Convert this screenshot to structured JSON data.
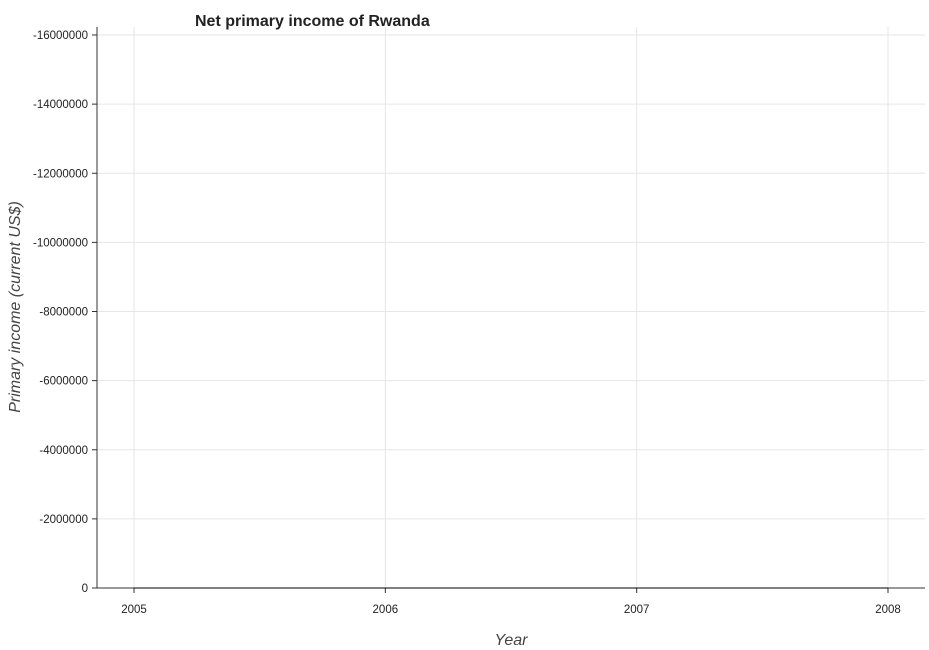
{
  "chart_data": {
    "type": "line",
    "title": "Net primary income of Rwanda",
    "xlabel": "Year",
    "ylabel": "Primary income (current US$)",
    "categories": [
      "2005",
      "2006",
      "2007",
      "2008"
    ],
    "series": [
      {
        "values": [
          0,
          0,
          0,
          0
        ],
        "color": "#000000"
      }
    ],
    "ylim": [
      0,
      -16000000
    ],
    "yticks": [
      0,
      -2000000,
      -4000000,
      -6000000,
      -8000000,
      -10000000,
      -12000000,
      -14000000,
      -16000000
    ],
    "ytick_labels": [
      "0",
      "-2000000",
      "-4000000",
      "-6000000",
      "-8000000",
      "-10000000",
      "-12000000",
      "-14000000",
      "-16000000"
    ],
    "grid": true,
    "legend": "none"
  }
}
